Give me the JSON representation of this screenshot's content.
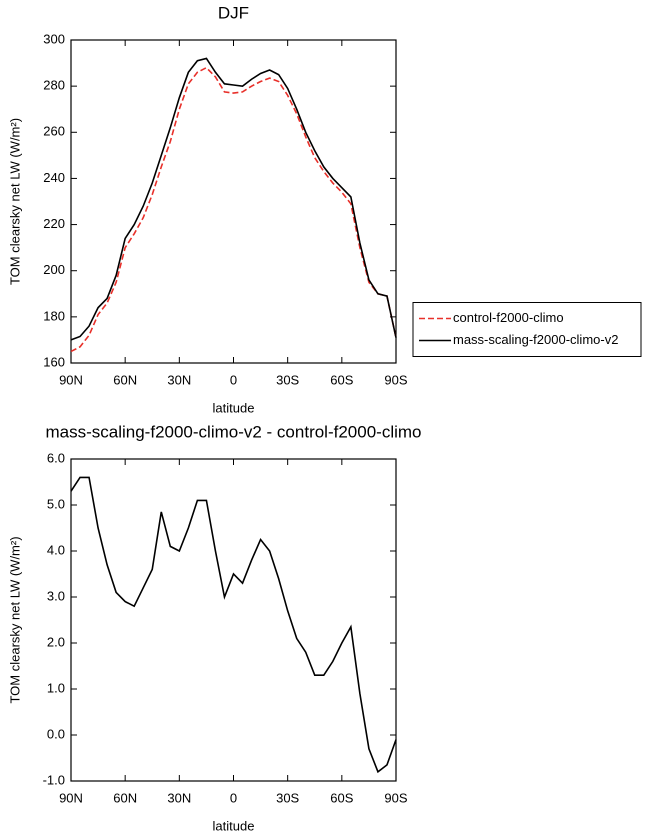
{
  "chart_data": [
    {
      "type": "line",
      "title": "DJF",
      "x_label": "latitude",
      "y_label": "TOM clearsky net LW (W/m²)",
      "x": [
        90,
        85,
        80,
        75,
        70,
        65,
        60,
        55,
        50,
        45,
        40,
        35,
        30,
        25,
        20,
        15,
        10,
        5,
        0,
        -5,
        -10,
        -15,
        -20,
        -25,
        -30,
        -35,
        -40,
        -45,
        -50,
        -55,
        -60,
        -65,
        -70,
        -75,
        -80,
        -85,
        -90
      ],
      "xlim": [
        90,
        -90
      ],
      "xticks": [
        {
          "value": 90,
          "label": "90N"
        },
        {
          "value": 60,
          "label": "60N"
        },
        {
          "value": 30,
          "label": "30N"
        },
        0,
        {
          "value": -30,
          "label": "30S"
        },
        {
          "value": -60,
          "label": "60S"
        },
        {
          "value": -90,
          "label": "90S"
        }
      ],
      "ylim": [
        160,
        300
      ],
      "yticks": [
        160,
        180,
        200,
        220,
        240,
        260,
        280,
        300
      ],
      "legend_position": "right",
      "series": [
        {
          "name": "control-f2000-climo",
          "color": "#e8302a",
          "line_style": "dashed",
          "values": [
            165,
            167,
            172,
            181,
            186,
            195,
            210,
            216,
            223,
            233,
            245,
            256,
            270,
            281,
            286,
            288,
            284,
            277.5,
            277,
            277.5,
            280,
            282,
            283.5,
            282,
            276,
            268,
            258,
            249,
            243,
            238,
            234,
            229,
            210,
            195,
            190,
            189,
            171
          ]
        },
        {
          "name": "mass-scaling-f2000-climo-v2",
          "color": "#000000",
          "line_style": "solid",
          "values": [
            170,
            171.5,
            176,
            184,
            188,
            198,
            214,
            220,
            228,
            238,
            250,
            262,
            275,
            286,
            291,
            292,
            286,
            281,
            280.5,
            280,
            283,
            285.5,
            287,
            285,
            279,
            270,
            260,
            252,
            245,
            240,
            236,
            232,
            212,
            196,
            190,
            189,
            171
          ]
        }
      ]
    },
    {
      "type": "line",
      "title": "mass-scaling-f2000-climo-v2 - control-f2000-climo",
      "x_label": "latitude",
      "y_label": "TOM clearsky net LW (W/m²)",
      "x": [
        90,
        85,
        80,
        75,
        70,
        65,
        60,
        55,
        50,
        45,
        40,
        35,
        30,
        25,
        20,
        15,
        10,
        5,
        0,
        -5,
        -10,
        -15,
        -20,
        -25,
        -30,
        -35,
        -40,
        -45,
        -50,
        -55,
        -60,
        -65,
        -70,
        -75,
        -80,
        -85,
        -90
      ],
      "xlim": [
        90,
        -90
      ],
      "xticks": [
        {
          "value": 90,
          "label": "90N"
        },
        {
          "value": 60,
          "label": "60N"
        },
        {
          "value": 30,
          "label": "30N"
        },
        0,
        {
          "value": -30,
          "label": "30S"
        },
        {
          "value": -60,
          "label": "60S"
        },
        {
          "value": -90,
          "label": "90S"
        }
      ],
      "ylim": [
        -1,
        6
      ],
      "yticks": [
        {
          "value": -1,
          "label": "-1.0"
        },
        {
          "value": 0,
          "label": "0.0"
        },
        {
          "value": 1,
          "label": "1.0"
        },
        {
          "value": 2,
          "label": "2.0"
        },
        {
          "value": 3,
          "label": "3.0"
        },
        {
          "value": 4,
          "label": "4.0"
        },
        {
          "value": 5,
          "label": "5.0"
        },
        {
          "value": 6,
          "label": "6.0"
        }
      ],
      "series": [
        {
          "color": "#000000",
          "line_style": "solid",
          "values": [
            5.3,
            5.6,
            5.6,
            4.5,
            3.7,
            3.1,
            2.9,
            2.8,
            3.2,
            3.6,
            4.85,
            4.1,
            4.0,
            4.5,
            5.1,
            5.1,
            4.0,
            3.0,
            3.5,
            3.3,
            3.8,
            4.25,
            4.0,
            3.4,
            2.7,
            2.1,
            1.8,
            1.3,
            1.3,
            1.6,
            2.0,
            2.35,
            0.9,
            -0.3,
            -0.8,
            -0.65,
            -0.1
          ]
        }
      ]
    }
  ]
}
